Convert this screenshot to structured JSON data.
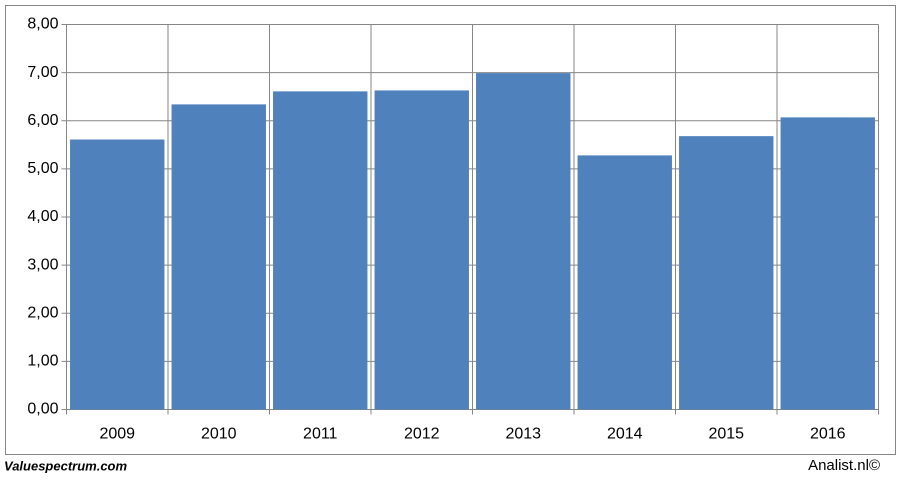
{
  "chart_data": {
    "type": "bar",
    "categories": [
      "2009",
      "2010",
      "2011",
      "2012",
      "2013",
      "2014",
      "2015",
      "2016"
    ],
    "values": [
      5.61,
      6.34,
      6.61,
      6.63,
      6.99,
      5.28,
      5.68,
      6.07
    ],
    "color": "#4f81bd",
    "ylim": [
      0,
      8
    ],
    "yticks": [
      {
        "value": 0,
        "label": "0,00"
      },
      {
        "value": 1,
        "label": "1,00"
      },
      {
        "value": 2,
        "label": "2,00"
      },
      {
        "value": 3,
        "label": "3,00"
      },
      {
        "value": 4,
        "label": "4,00"
      },
      {
        "value": 5,
        "label": "5,00"
      },
      {
        "value": 6,
        "label": "6,00"
      },
      {
        "value": 7,
        "label": "7,00"
      },
      {
        "value": 8,
        "label": "8,00"
      }
    ],
    "grid": true
  },
  "footer": {
    "left": "Valuespectrum.com",
    "right": "Analist.nl©"
  }
}
